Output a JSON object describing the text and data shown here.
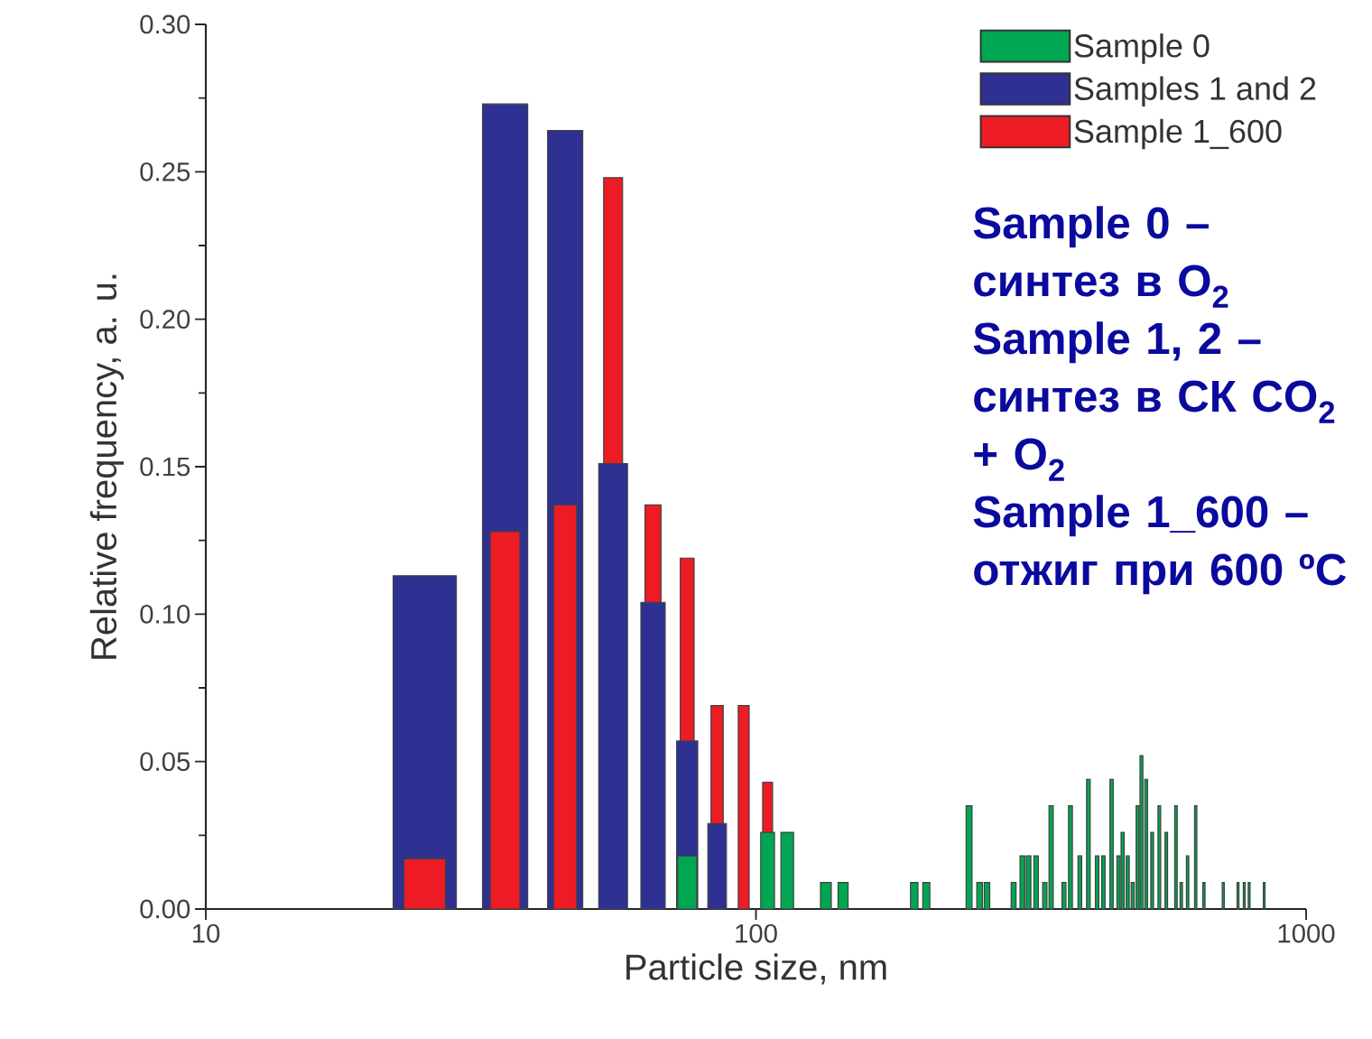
{
  "chart_data": {
    "type": "bar",
    "log": "x",
    "legend": "top right",
    "xlabel": "Particle size, nm",
    "ylabel": "Relative frequency, a. u.",
    "xlim": [
      10,
      1000
    ],
    "xticks": [
      10,
      100,
      1000
    ],
    "ylim": [
      0,
      0.3
    ],
    "yticks": [
      {
        "value": 0,
        "label": "0.00"
      },
      {
        "value": 0.05,
        "label": "0.05"
      },
      {
        "value": 0.1,
        "label": "0.10"
      },
      {
        "value": 0.15,
        "label": "0.15"
      },
      {
        "value": 0.2,
        "label": "0.20"
      },
      {
        "value": 0.25,
        "label": "0.25"
      },
      {
        "value": 0.3,
        "label": "0.30"
      }
    ],
    "series": [
      {
        "name": "Sample 0",
        "color": "#00a651",
        "x": [
          75,
          105,
          114,
          134,
          144,
          194,
          204,
          244,
          255,
          263,
          294,
          305,
          313,
          323,
          335,
          344,
          363,
          373,
          388,
          402,
          417,
          428,
          443,
          456,
          464,
          474,
          484,
          494,
          502,
          512,
          525,
          541,
          557,
          580,
          593,
          609,
          630,
          652,
          707,
          752,
          772,
          788,
          839
        ],
        "values": [
          0.018,
          0.026,
          0.026,
          0.009,
          0.009,
          0.009,
          0.009,
          0.035,
          0.009,
          0.009,
          0.009,
          0.018,
          0.018,
          0.018,
          0.009,
          0.035,
          0.009,
          0.035,
          0.018,
          0.044,
          0.018,
          0.018,
          0.044,
          0.018,
          0.026,
          0.018,
          0.009,
          0.035,
          0.052,
          0.044,
          0.026,
          0.035,
          0.026,
          0.035,
          0.009,
          0.018,
          0.035,
          0.009,
          0.009,
          0.009,
          0.009,
          0.009,
          0.009
        ]
      },
      {
        "name": "Samples 1 and 2",
        "color": "#2e3192",
        "x": [
          25,
          35,
          45,
          55,
          65,
          75,
          85
        ],
        "values": [
          0.113,
          0.273,
          0.264,
          0.151,
          0.104,
          0.057,
          0.029
        ]
      },
      {
        "name": "Sample 1_600",
        "color": "#ed1c24",
        "x": [
          25,
          35,
          45,
          55,
          65,
          75,
          85,
          95,
          105
        ],
        "values": [
          0.017,
          0.128,
          0.137,
          0.248,
          0.137,
          0.119,
          0.069,
          0.069,
          0.043
        ]
      }
    ],
    "annotations": [
      "Sample 0 – синтез в O$_{2}$",
      "Sample 1, 2 – синтез в СК CO$_{2}$ + O$_{2}$",
      "Sample 1_600 – отжиг при 600 ºC"
    ]
  }
}
